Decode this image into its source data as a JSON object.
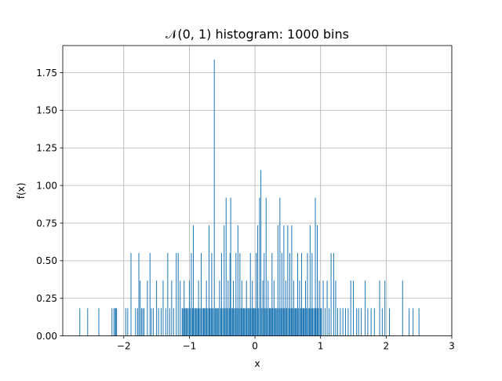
{
  "chart_data": {
    "type": "bar",
    "title": "𝒩(0, 1) histogram: 1000 bins",
    "xlabel": "x",
    "ylabel": "f(x)",
    "xlim": [
      -2.93,
      3.0
    ],
    "ylim": [
      0.0,
      1.93
    ],
    "xticks": [
      -2,
      -1,
      0,
      1,
      2,
      3
    ],
    "xtick_labels": [
      "−2",
      "−1",
      "0",
      "1",
      "2",
      "3"
    ],
    "yticks": [
      0.0,
      0.25,
      0.5,
      0.75,
      1.0,
      1.25,
      1.5,
      1.75
    ],
    "ytick_labels": [
      "0.00",
      "0.25",
      "0.50",
      "0.75",
      "1.00",
      "1.25",
      "1.50",
      "1.75"
    ],
    "grid": true,
    "bar_color": "#1f77b4",
    "bin_width": 0.00545,
    "bins": [
      {
        "x": -2.67,
        "y": 0.184
      },
      {
        "x": -2.55,
        "y": 0.184
      },
      {
        "x": -2.38,
        "y": 0.184
      },
      {
        "x": -2.18,
        "y": 0.184
      },
      {
        "x": -2.15,
        "y": 0.184
      },
      {
        "x": -2.13,
        "y": 0.184
      },
      {
        "x": -2.12,
        "y": 0.184
      },
      {
        "x": -2.11,
        "y": 0.184
      },
      {
        "x": -1.97,
        "y": 0.184
      },
      {
        "x": -1.94,
        "y": 0.184
      },
      {
        "x": -1.89,
        "y": 0.551
      },
      {
        "x": -1.82,
        "y": 0.184
      },
      {
        "x": -1.79,
        "y": 0.184
      },
      {
        "x": -1.77,
        "y": 0.551
      },
      {
        "x": -1.75,
        "y": 0.368
      },
      {
        "x": -1.73,
        "y": 0.184
      },
      {
        "x": -1.71,
        "y": 0.184
      },
      {
        "x": -1.69,
        "y": 0.184
      },
      {
        "x": -1.64,
        "y": 0.368
      },
      {
        "x": -1.6,
        "y": 0.551
      },
      {
        "x": -1.58,
        "y": 0.184
      },
      {
        "x": -1.55,
        "y": 0.184
      },
      {
        "x": -1.5,
        "y": 0.368
      },
      {
        "x": -1.47,
        "y": 0.184
      },
      {
        "x": -1.43,
        "y": 0.184
      },
      {
        "x": -1.4,
        "y": 0.368
      },
      {
        "x": -1.36,
        "y": 0.184
      },
      {
        "x": -1.33,
        "y": 0.551
      },
      {
        "x": -1.3,
        "y": 0.184
      },
      {
        "x": -1.27,
        "y": 0.368
      },
      {
        "x": -1.24,
        "y": 0.184
      },
      {
        "x": -1.2,
        "y": 0.551
      },
      {
        "x": -1.17,
        "y": 0.551
      },
      {
        "x": -1.14,
        "y": 0.368
      },
      {
        "x": -1.11,
        "y": 0.184
      },
      {
        "x": -1.08,
        "y": 0.368
      },
      {
        "x": -1.05,
        "y": 0.184
      },
      {
        "x": -1.0,
        "y": 0.368
      },
      {
        "x": -0.97,
        "y": 0.551
      },
      {
        "x": -0.94,
        "y": 0.735
      },
      {
        "x": -0.9,
        "y": 0.184
      },
      {
        "x": -0.86,
        "y": 0.368
      },
      {
        "x": -0.82,
        "y": 0.551
      },
      {
        "x": -0.78,
        "y": 0.184
      },
      {
        "x": -0.74,
        "y": 0.368
      },
      {
        "x": -0.7,
        "y": 0.735
      },
      {
        "x": -0.66,
        "y": 0.551
      },
      {
        "x": -0.62,
        "y": 1.837
      },
      {
        "x": -0.58,
        "y": 0.184
      },
      {
        "x": -0.54,
        "y": 0.368
      },
      {
        "x": -0.51,
        "y": 0.551
      },
      {
        "x": -0.47,
        "y": 0.735
      },
      {
        "x": -0.44,
        "y": 0.919
      },
      {
        "x": -0.41,
        "y": 0.368
      },
      {
        "x": -0.38,
        "y": 0.551
      },
      {
        "x": -0.37,
        "y": 0.919
      },
      {
        "x": -0.33,
        "y": 0.368
      },
      {
        "x": -0.29,
        "y": 0.551
      },
      {
        "x": -0.26,
        "y": 0.735
      },
      {
        "x": -0.23,
        "y": 0.551
      },
      {
        "x": -0.2,
        "y": 0.368
      },
      {
        "x": -0.17,
        "y": 0.184
      },
      {
        "x": -0.13,
        "y": 0.368
      },
      {
        "x": -0.1,
        "y": 0.184
      },
      {
        "x": -0.07,
        "y": 0.551
      },
      {
        "x": -0.04,
        "y": 0.368
      },
      {
        "x": -0.02,
        "y": 0.184
      },
      {
        "x": 0.02,
        "y": 0.551
      },
      {
        "x": 0.04,
        "y": 0.735
      },
      {
        "x": 0.07,
        "y": 0.919
      },
      {
        "x": 0.09,
        "y": 1.102
      },
      {
        "x": 0.12,
        "y": 0.368
      },
      {
        "x": 0.14,
        "y": 0.551
      },
      {
        "x": 0.17,
        "y": 0.919
      },
      {
        "x": 0.2,
        "y": 0.368
      },
      {
        "x": 0.23,
        "y": 0.184
      },
      {
        "x": 0.26,
        "y": 0.551
      },
      {
        "x": 0.29,
        "y": 0.368
      },
      {
        "x": 0.32,
        "y": 0.184
      },
      {
        "x": 0.35,
        "y": 0.735
      },
      {
        "x": 0.38,
        "y": 0.919
      },
      {
        "x": 0.41,
        "y": 0.551
      },
      {
        "x": 0.44,
        "y": 0.735
      },
      {
        "x": 0.47,
        "y": 0.368
      },
      {
        "x": 0.5,
        "y": 0.735
      },
      {
        "x": 0.53,
        "y": 0.551
      },
      {
        "x": 0.56,
        "y": 0.735
      },
      {
        "x": 0.59,
        "y": 0.368
      },
      {
        "x": 0.62,
        "y": 0.184
      },
      {
        "x": 0.65,
        "y": 0.551
      },
      {
        "x": 0.68,
        "y": 0.368
      },
      {
        "x": 0.71,
        "y": 0.551
      },
      {
        "x": 0.74,
        "y": 0.184
      },
      {
        "x": 0.77,
        "y": 0.368
      },
      {
        "x": 0.8,
        "y": 0.551
      },
      {
        "x": 0.84,
        "y": 0.735
      },
      {
        "x": 0.87,
        "y": 0.551
      },
      {
        "x": 0.92,
        "y": 0.919
      },
      {
        "x": 0.95,
        "y": 0.735
      },
      {
        "x": 0.98,
        "y": 0.368
      },
      {
        "x": 1.01,
        "y": 0.184
      },
      {
        "x": 1.04,
        "y": 0.368
      },
      {
        "x": 1.07,
        "y": 0.184
      },
      {
        "x": 1.1,
        "y": 0.368
      },
      {
        "x": 1.13,
        "y": 0.184
      },
      {
        "x": 1.16,
        "y": 0.551
      },
      {
        "x": 1.2,
        "y": 0.551
      },
      {
        "x": 1.23,
        "y": 0.368
      },
      {
        "x": 1.26,
        "y": 0.184
      },
      {
        "x": 1.3,
        "y": 0.184
      },
      {
        "x": 1.34,
        "y": 0.184
      },
      {
        "x": 1.38,
        "y": 0.184
      },
      {
        "x": 1.42,
        "y": 0.184
      },
      {
        "x": 1.46,
        "y": 0.368
      },
      {
        "x": 1.5,
        "y": 0.368
      },
      {
        "x": 1.55,
        "y": 0.184
      },
      {
        "x": 1.58,
        "y": 0.184
      },
      {
        "x": 1.62,
        "y": 0.184
      },
      {
        "x": 1.68,
        "y": 0.368
      },
      {
        "x": 1.72,
        "y": 0.184
      },
      {
        "x": 1.77,
        "y": 0.184
      },
      {
        "x": 1.82,
        "y": 0.184
      },
      {
        "x": 1.9,
        "y": 0.368
      },
      {
        "x": 1.94,
        "y": 0.184
      },
      {
        "x": 1.98,
        "y": 0.368
      },
      {
        "x": 2.05,
        "y": 0.184
      },
      {
        "x": 2.25,
        "y": 0.368
      },
      {
        "x": 2.35,
        "y": 0.184
      },
      {
        "x": 2.41,
        "y": 0.184
      },
      {
        "x": 2.5,
        "y": 0.184
      }
    ]
  }
}
